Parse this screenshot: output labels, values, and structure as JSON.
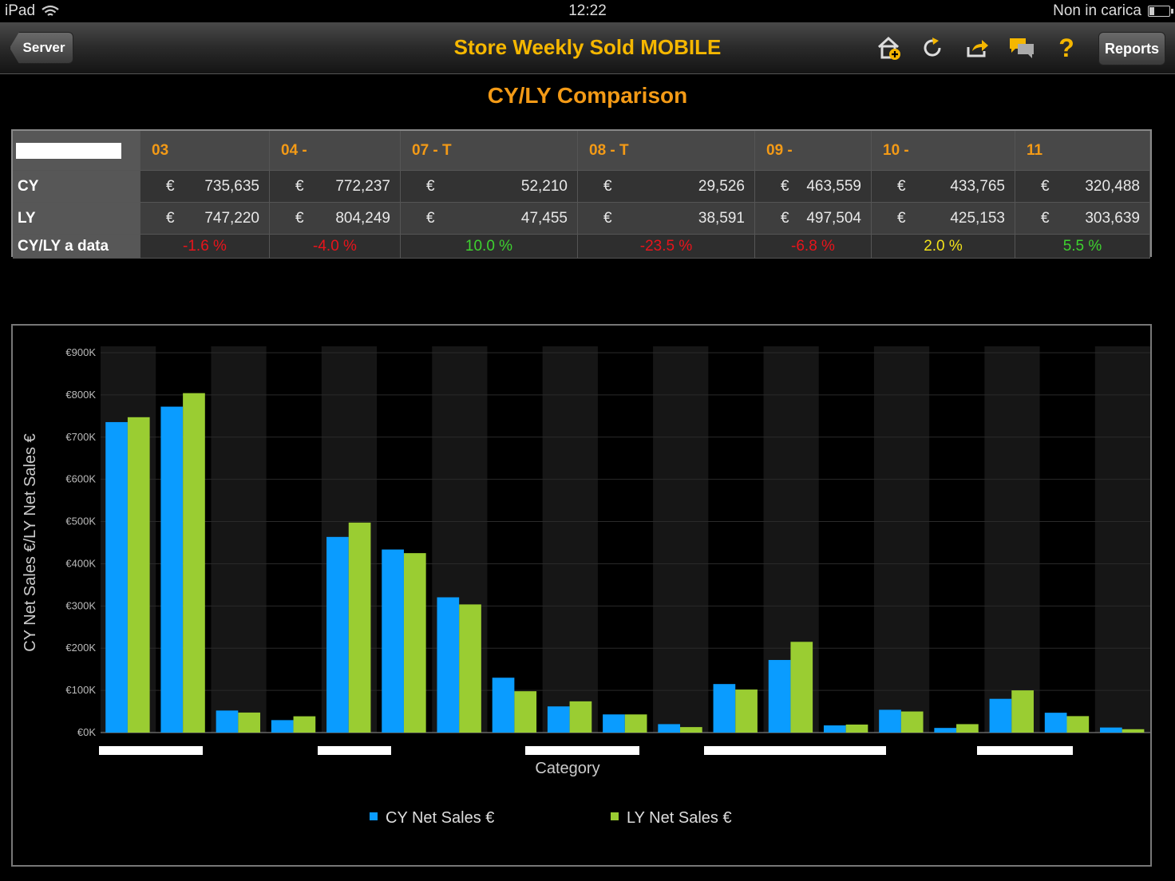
{
  "status": {
    "device": "iPad",
    "time": "12:22",
    "battery_text": "Non in carica"
  },
  "nav": {
    "back_label": "Server",
    "title": "Store Weekly Sold MOBILE",
    "reports_label": "Reports",
    "icons": [
      "home-add-icon",
      "refresh-icon",
      "share-icon",
      "comments-icon",
      "help-icon"
    ]
  },
  "section_title": "CY/LY Comparison",
  "table": {
    "columns": [
      "03",
      "04 -",
      "07 - T",
      "08 - T",
      "09 -",
      "10 -",
      "11"
    ],
    "row_labels": {
      "cy": "CY",
      "ly": "LY",
      "pct": "CY/LY a data"
    },
    "currency": "€",
    "cy": [
      "735,635",
      "772,237",
      "52,210",
      "29,526",
      "463,559",
      "433,765",
      "320,488"
    ],
    "ly": [
      "747,220",
      "804,249",
      "47,455",
      "38,591",
      "497,504",
      "425,153",
      "303,639"
    ],
    "pct": [
      "-1.6 %",
      "-4.0 %",
      "10.0 %",
      "-23.5 %",
      "-6.8 %",
      "2.0 %",
      "5.5 %"
    ],
    "pct_status": [
      "neg",
      "neg",
      "pos",
      "neg",
      "neg",
      "neu",
      "pos"
    ]
  },
  "colors": {
    "cy": "#0a9cff",
    "ly": "#9acd32",
    "title": "#f5b700",
    "header": "#f39a16"
  },
  "chart_data": {
    "type": "bar",
    "xlabel": "Category",
    "ylabel": "CY Net Sales €/LY Net Sales €",
    "ylim": [
      0,
      900000
    ],
    "y_ticks": [
      "€0K",
      "€100K",
      "€200K",
      "€300K",
      "€400K",
      "€500K",
      "€600K",
      "€700K",
      "€800K",
      "€900K"
    ],
    "legend_position": "bottom",
    "series": [
      {
        "name": "CY Net Sales €",
        "values": [
          735635,
          772237,
          52210,
          29526,
          463559,
          433765,
          320488,
          130000,
          62000,
          43000,
          20000,
          115000,
          172000,
          17000,
          54000,
          11000,
          80000,
          47000,
          12000
        ]
      },
      {
        "name": "LY Net Sales €",
        "values": [
          747220,
          804249,
          47455,
          38591,
          497504,
          425153,
          303639,
          98000,
          74000,
          43000,
          13000,
          102000,
          215000,
          19000,
          50000,
          20000,
          100000,
          39000,
          8000
        ]
      }
    ]
  }
}
